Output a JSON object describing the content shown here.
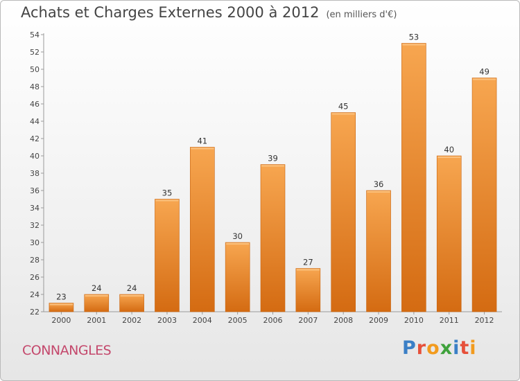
{
  "header": {
    "title": "Achats et Charges Externes 2000 à 2012",
    "subtitle": "(en milliers d'€)"
  },
  "footer": {
    "commune": "CONNANGLES",
    "logo": "Proxiti"
  },
  "colors": {
    "bar_light": "#f5a24e",
    "bar_dark": "#d86e15",
    "title": "#444444",
    "commune": "#c4486c"
  },
  "chart_data": {
    "type": "bar",
    "title": "Achats et Charges Externes 2000 à 2012",
    "subtitle": "(en milliers d'€)",
    "categories": [
      "2000",
      "2001",
      "2002",
      "2003",
      "2004",
      "2005",
      "2006",
      "2007",
      "2008",
      "2009",
      "2010",
      "2011",
      "2012"
    ],
    "values": [
      23,
      24,
      24,
      35,
      41,
      30,
      39,
      27,
      45,
      36,
      53,
      40,
      49
    ],
    "ylim": [
      22,
      54
    ],
    "yticks": [
      22,
      24,
      26,
      28,
      30,
      32,
      34,
      36,
      38,
      40,
      42,
      44,
      46,
      48,
      50,
      52,
      54
    ],
    "grid": false,
    "legend": "none",
    "data_labels": true
  }
}
